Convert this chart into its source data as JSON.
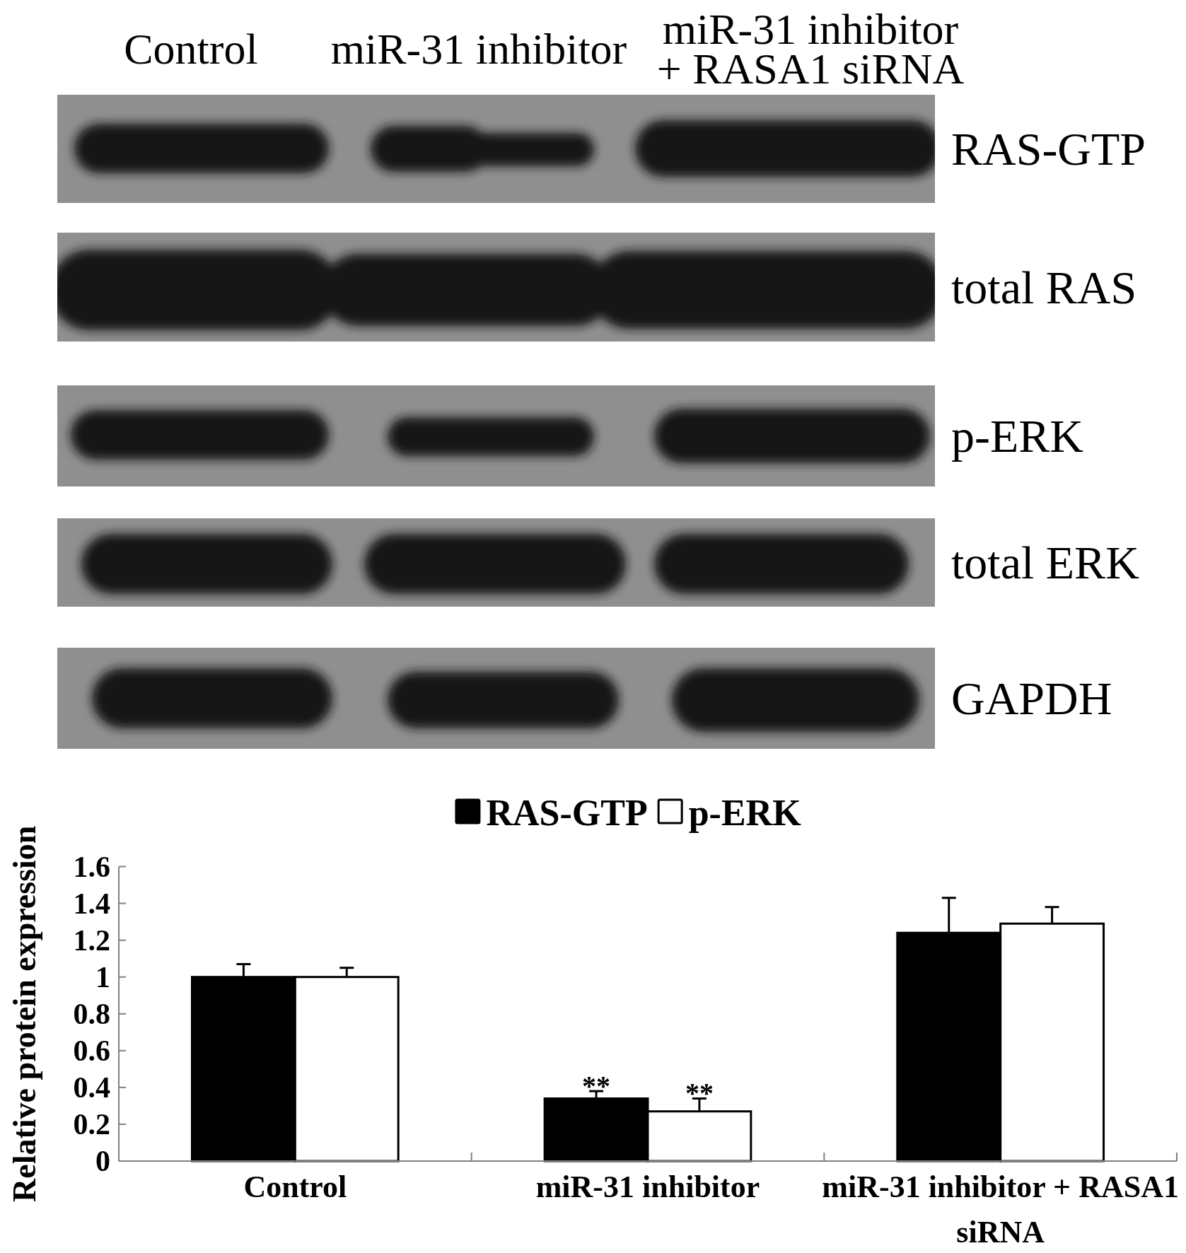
{
  "chart_data": [
    {
      "type": "other",
      "categories": [
        "Control",
        "miR-31 inhibitor",
        "miR-31 inhibitor + RASA1 siRNA"
      ],
      "y_categories": [
        "RAS-GTP",
        "total RAS",
        "p-ERK",
        "total ERK",
        "GAPDH"
      ]
    },
    {
      "type": "bar",
      "categories": [
        "Control",
        "miR-31 inhibitor",
        "miR-31 inhibitor + RASA1 siRNA"
      ],
      "series": [
        {
          "name": "RAS-GTP",
          "color": "#000000",
          "values": [
            1.0,
            0.34,
            1.24
          ],
          "errors": [
            [
              1.0,
              1.07
            ],
            [
              0.34,
              0.38
            ],
            [
              1.24,
              1.43
            ]
          ]
        },
        {
          "name": "p-ERK",
          "color": "#ffffff",
          "values": [
            1.0,
            0.27,
            1.29
          ],
          "errors": [
            [
              1.0,
              1.05
            ],
            [
              0.27,
              0.34
            ],
            [
              1.29,
              1.38
            ]
          ]
        }
      ],
      "ylabel": "Relative protein expression",
      "ylim": [
        0,
        1.6
      ],
      "yticks": [
        0,
        0.2,
        0.4,
        0.6,
        0.8,
        1,
        1.2,
        1.4,
        1.6
      ],
      "legend": "top",
      "annotations": [
        {
          "text": "**",
          "x": "miR-31 inhibitor",
          "y": 0.34
        },
        {
          "text": "**",
          "x": "miR-31 inhibitor",
          "y": 0.27
        }
      ]
    }
  ]
}
